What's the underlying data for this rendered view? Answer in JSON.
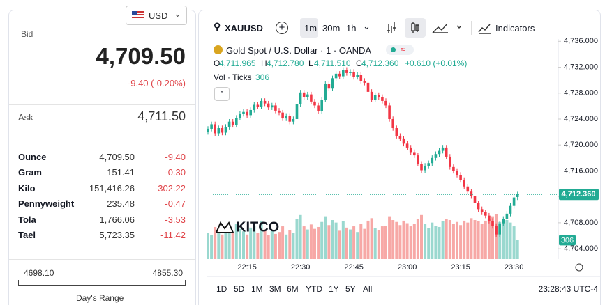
{
  "panel": {
    "currency": "USD",
    "bid_label": "Bid",
    "bid": "4,709.50",
    "change": "-9.40 (-0.20%)",
    "ask_label": "Ask",
    "ask": "4,711.50",
    "rows": [
      [
        "Ounce",
        "4,709.50",
        "-9.40"
      ],
      [
        "Gram",
        "151.41",
        "-0.30"
      ],
      [
        "Kilo",
        "151,416.26",
        "-302.22"
      ],
      [
        "Pennyweight",
        "235.48",
        "-0.47"
      ],
      [
        "Tola",
        "1,766.06",
        "-3.53"
      ],
      [
        "Tael",
        "5,723.35",
        "-11.42"
      ]
    ],
    "range_low": "4698.10",
    "range_high": "4855.30",
    "range_label": "Day's Range"
  },
  "toolbar": {
    "symbol": "XAUUSD",
    "intervals": [
      "1m",
      "30m",
      "1h"
    ],
    "indicators": "Indicators"
  },
  "legend": {
    "title": "Gold Spot / U.S. Dollar · 1 · OANDA",
    "ohlc": [
      [
        "O",
        "4,711.965"
      ],
      [
        "H",
        "4,712.780"
      ],
      [
        "L",
        "4,711.510"
      ],
      [
        "C",
        "4,712.360"
      ]
    ],
    "change": "+0.610 (+0.01%)",
    "volume_label": "Vol · Ticks"
  },
  "logo": "KITCO",
  "footer": {
    "ranges": [
      "1D",
      "5D",
      "1M",
      "3M",
      "6M",
      "YTD",
      "1Y",
      "5Y",
      "All"
    ],
    "clock": "23:28:43 UTC-4"
  },
  "chart_data": {
    "type": "candlestick",
    "categories": [
      null,
      null,
      null,
      null,
      null,
      null,
      null,
      null,
      null,
      null,
      null,
      "22:15",
      null,
      null,
      null,
      null,
      null,
      null,
      null,
      null,
      null,
      null,
      null,
      null,
      null,
      null,
      "22:30",
      null,
      null,
      null,
      null,
      null,
      null,
      null,
      null,
      null,
      null,
      null,
      null,
      null,
      null,
      "22:45",
      null,
      null,
      null,
      null,
      null,
      null,
      null,
      null,
      null,
      null,
      null,
      null,
      null,
      null,
      "23:00",
      null,
      null,
      null,
      null,
      null,
      null,
      null,
      null,
      null,
      null,
      null,
      null,
      null,
      null,
      "23:15",
      null,
      null,
      null,
      null,
      null,
      null,
      null,
      null,
      null,
      null,
      null,
      null,
      null,
      null,
      "23:30",
      null
    ],
    "open": [
      4722.0,
      4722.5,
      4723.2,
      4721.8,
      4722.6,
      4721.9,
      4722.8,
      4723.6,
      4723.1,
      4724.2,
      4724.8,
      4725.1,
      4724.6,
      4725.4,
      4726.2,
      4725.9,
      4726.8,
      4726.4,
      4725.8,
      4726.1,
      4725.3,
      4725.0,
      4724.1,
      4724.5,
      4723.6,
      4724.0,
      4726.3,
      4728.1,
      4727.4,
      4727.8,
      4726.7,
      4726.1,
      4725.2,
      4727.0,
      4729.4,
      4728.7,
      4730.3,
      4731.0,
      4730.6,
      4731.6,
      4731.1,
      4731.3,
      4730.5,
      4730.8,
      4729.9,
      4729.6,
      4728.2,
      4727.0,
      4727.7,
      4727.4,
      4726.8,
      4726.1,
      4724.0,
      4722.6,
      4721.4,
      4721.0,
      4720.2,
      4719.6,
      4718.9,
      4718.4,
      4717.1,
      4716.1,
      4716.8,
      4717.2,
      4718.0,
      4718.6,
      4719.1,
      4719.6,
      4718.2,
      4716.6,
      4716.0,
      4715.4,
      4714.6,
      4713.6,
      4712.8,
      4712.1,
      4711.0,
      4710.1,
      4709.6,
      4709.1,
      4708.3,
      4707.5,
      4706.2,
      4707.9,
      4708.6,
      4709.4,
      4710.6,
      4711.965
    ],
    "high": [
      4722.9,
      4723.6,
      4723.6,
      4723.0,
      4723.0,
      4723.2,
      4724.0,
      4724.0,
      4724.6,
      4725.2,
      4725.5,
      4725.5,
      4725.8,
      4726.6,
      4726.6,
      4727.2,
      4727.2,
      4726.8,
      4726.5,
      4726.5,
      4725.7,
      4725.4,
      4724.9,
      4724.9,
      4724.4,
      4726.7,
      4728.5,
      4728.5,
      4728.2,
      4728.2,
      4727.1,
      4726.5,
      4727.4,
      4729.8,
      4729.8,
      4730.7,
      4731.4,
      4731.4,
      4732.0,
      4732.0,
      4731.7,
      4731.7,
      4731.2,
      4731.2,
      4730.3,
      4730.0,
      4728.6,
      4728.1,
      4728.1,
      4727.8,
      4727.2,
      4726.5,
      4724.4,
      4723.0,
      4721.8,
      4721.4,
      4720.6,
      4720.0,
      4719.3,
      4718.8,
      4717.5,
      4717.2,
      4717.6,
      4718.4,
      4719.0,
      4719.5,
      4720.0,
      4720.0,
      4718.6,
      4717.0,
      4716.4,
      4715.8,
      4715.0,
      4714.0,
      4713.2,
      4712.5,
      4711.4,
      4710.5,
      4710.0,
      4709.5,
      4708.7,
      4707.9,
      4708.3,
      4709.0,
      4709.8,
      4711.0,
      4712.3,
      4712.78
    ],
    "low": [
      4721.6,
      4722.1,
      4721.4,
      4721.4,
      4721.5,
      4721.5,
      4722.4,
      4722.7,
      4722.7,
      4723.8,
      4724.4,
      4724.2,
      4724.2,
      4725.0,
      4725.5,
      4725.5,
      4726.0,
      4725.4,
      4725.4,
      4724.9,
      4724.6,
      4723.7,
      4723.7,
      4723.2,
      4723.2,
      4723.6,
      4725.9,
      4727.0,
      4727.0,
      4726.3,
      4725.7,
      4724.8,
      4724.8,
      4726.6,
      4728.3,
      4728.3,
      4729.9,
      4730.2,
      4730.2,
      4730.7,
      4730.7,
      4730.1,
      4730.1,
      4729.5,
      4729.2,
      4727.8,
      4726.6,
      4726.6,
      4727.0,
      4726.4,
      4725.7,
      4723.6,
      4722.2,
      4721.0,
      4720.6,
      4719.8,
      4719.2,
      4718.5,
      4718.0,
      4716.7,
      4715.7,
      4715.7,
      4716.4,
      4716.8,
      4717.6,
      4718.2,
      4718.7,
      4717.8,
      4716.2,
      4715.6,
      4715.0,
      4714.2,
      4713.2,
      4712.4,
      4711.7,
      4710.6,
      4709.7,
      4709.2,
      4708.7,
      4707.9,
      4707.1,
      4705.8,
      4705.8,
      4707.5,
      4708.2,
      4709.0,
      4710.2,
      4711.51
    ],
    "close": [
      4722.5,
      4723.2,
      4721.8,
      4722.6,
      4721.9,
      4722.8,
      4723.6,
      4723.1,
      4724.2,
      4724.8,
      4725.1,
      4724.6,
      4725.4,
      4726.2,
      4725.9,
      4726.8,
      4726.4,
      4725.8,
      4726.1,
      4725.3,
      4725.0,
      4724.1,
      4724.5,
      4723.6,
      4724.0,
      4726.3,
      4728.1,
      4727.4,
      4727.8,
      4726.7,
      4726.1,
      4725.2,
      4727.0,
      4729.4,
      4728.7,
      4730.3,
      4731.0,
      4730.6,
      4731.6,
      4731.1,
      4731.3,
      4730.5,
      4730.8,
      4729.9,
      4729.6,
      4728.2,
      4727.0,
      4727.7,
      4727.4,
      4726.8,
      4726.1,
      4724.0,
      4722.6,
      4721.4,
      4721.0,
      4720.2,
      4719.6,
      4718.9,
      4718.4,
      4717.1,
      4716.1,
      4716.8,
      4717.2,
      4718.0,
      4718.6,
      4719.1,
      4719.6,
      4718.2,
      4716.6,
      4716.0,
      4715.4,
      4714.6,
      4713.6,
      4712.8,
      4712.1,
      4711.0,
      4710.1,
      4709.6,
      4709.1,
      4708.3,
      4707.5,
      4706.2,
      4707.9,
      4708.6,
      4709.4,
      4710.6,
      4711.9,
      4712.36
    ],
    "volume": [
      420,
      380,
      510,
      450,
      390,
      470,
      520,
      410,
      560,
      480,
      440,
      390,
      500,
      530,
      420,
      610,
      470,
      380,
      450,
      400,
      430,
      520,
      390,
      460,
      410,
      640,
      700,
      520,
      470,
      550,
      480,
      510,
      590,
      680,
      540,
      620,
      580,
      450,
      600,
      500,
      470,
      520,
      430,
      560,
      480,
      610,
      650,
      490,
      460,
      520,
      530,
      680,
      620,
      590,
      540,
      610,
      570,
      520,
      560,
      640,
      700,
      560,
      490,
      580,
      530,
      510,
      600,
      640,
      620,
      560,
      590,
      540,
      610,
      580,
      650,
      620,
      600,
      560,
      610,
      640,
      680,
      720,
      590,
      560,
      620,
      580,
      520,
      306
    ],
    "last_price_label": "4,712.360",
    "ylim": [
      4702.4,
      4737
    ],
    "yticks": [
      {
        "value": 4704,
        "label": "4,704.000"
      },
      {
        "value": 4708,
        "label": "4,708.000"
      },
      {
        "value": 4712,
        "label": "4,712.000"
      },
      {
        "value": 4716,
        "label": "4,716.000"
      },
      {
        "value": 4720,
        "label": "4,720.000"
      },
      {
        "value": 4724,
        "label": "4,724.000"
      },
      {
        "value": 4728,
        "label": "4,728.000"
      },
      {
        "value": 4732,
        "label": "4,732.000"
      },
      {
        "value": 4736,
        "label": "4,736.000"
      }
    ],
    "up_color": "#22ab94",
    "down_color": "#f23645",
    "volume_up_color": "#9ad8cf",
    "volume_down_color": "#f7a8a6"
  }
}
